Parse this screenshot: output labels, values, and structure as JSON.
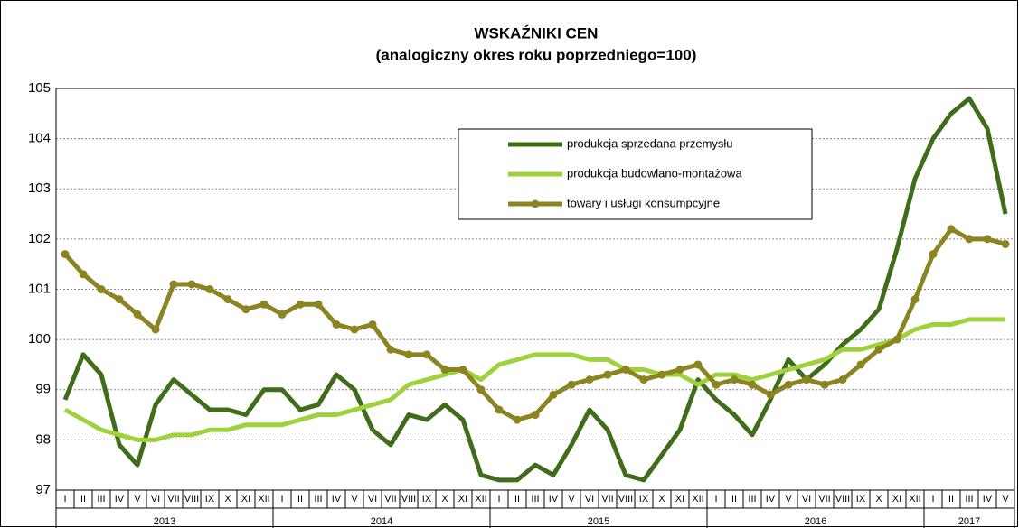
{
  "chart_data": {
    "type": "line",
    "title": "WSKAŹNIKI CEN",
    "subtitle": "(analogiczny okres roku poprzedniego=100)",
    "groups": [
      {
        "year": "2013",
        "months": [
          "I",
          "II",
          "III",
          "IV",
          "V",
          "VI",
          "VII",
          "VIII",
          "IX",
          "X",
          "XI",
          "XII"
        ]
      },
      {
        "year": "2014",
        "months": [
          "I",
          "II",
          "III",
          "IV",
          "V",
          "VI",
          "VII",
          "VIII",
          "IX",
          "X",
          "XI",
          "XII"
        ]
      },
      {
        "year": "2015",
        "months": [
          "I",
          "II",
          "III",
          "IV",
          "V",
          "VI",
          "VII",
          "VIII",
          "IX",
          "X",
          "XI",
          "XII"
        ]
      },
      {
        "year": "2016",
        "months": [
          "I",
          "II",
          "III",
          "IV",
          "V",
          "VI",
          "VII",
          "VIII",
          "IX",
          "X",
          "XI",
          "XII"
        ]
      },
      {
        "year": "2017",
        "months": [
          "I",
          "II",
          "III",
          "IV",
          "V"
        ]
      }
    ],
    "series": [
      {
        "name": "produkcja sprzedana przemysłu",
        "color": "#3f6d1a",
        "markers": false,
        "values": [
          98.8,
          99.7,
          99.3,
          97.9,
          97.5,
          98.7,
          99.2,
          98.9,
          98.6,
          98.6,
          98.5,
          99.0,
          99.0,
          98.6,
          98.7,
          99.3,
          99.0,
          98.2,
          97.9,
          98.5,
          98.4,
          98.7,
          98.4,
          97.3,
          97.2,
          97.2,
          97.5,
          97.3,
          97.9,
          98.6,
          98.2,
          97.3,
          97.2,
          97.7,
          98.2,
          99.2,
          98.8,
          98.5,
          98.1,
          98.8,
          99.6,
          99.2,
          99.5,
          99.9,
          100.2,
          100.6,
          101.8,
          103.2,
          104.0,
          104.5,
          104.8,
          104.2,
          102.5
        ]
      },
      {
        "name": "produkcja budowlano-montażowa",
        "color": "#9ed13a",
        "markers": false,
        "values": [
          98.6,
          98.4,
          98.2,
          98.1,
          98.0,
          98.0,
          98.1,
          98.1,
          98.2,
          98.2,
          98.3,
          98.3,
          98.3,
          98.4,
          98.5,
          98.5,
          98.6,
          98.7,
          98.8,
          99.1,
          99.2,
          99.3,
          99.4,
          99.2,
          99.5,
          99.6,
          99.7,
          99.7,
          99.7,
          99.6,
          99.6,
          99.4,
          99.4,
          99.3,
          99.3,
          99.1,
          99.3,
          99.3,
          99.2,
          99.3,
          99.4,
          99.5,
          99.6,
          99.8,
          99.8,
          99.9,
          100.0,
          100.2,
          100.3,
          100.3,
          100.4,
          100.4,
          100.4
        ]
      },
      {
        "name": "towary i usługi konsumpcyjne",
        "color": "#8b8420",
        "markers": true,
        "values": [
          101.7,
          101.3,
          101.0,
          100.8,
          100.5,
          100.2,
          101.1,
          101.1,
          101.0,
          100.8,
          100.6,
          100.7,
          100.5,
          100.7,
          100.7,
          100.3,
          100.2,
          100.3,
          99.8,
          99.7,
          99.7,
          99.4,
          99.4,
          99.0,
          98.6,
          98.4,
          98.5,
          98.9,
          99.1,
          99.2,
          99.3,
          99.4,
          99.2,
          99.3,
          99.4,
          99.5,
          99.1,
          99.2,
          99.1,
          98.9,
          99.1,
          99.2,
          99.1,
          99.2,
          99.5,
          99.8,
          100.0,
          100.8,
          101.7,
          102.2,
          102.0,
          102.0,
          101.9
        ]
      }
    ],
    "ylim": [
      97,
      105
    ],
    "yticks": [
      97,
      98,
      99,
      100,
      101,
      102,
      103,
      104,
      105
    ],
    "grid": true
  }
}
